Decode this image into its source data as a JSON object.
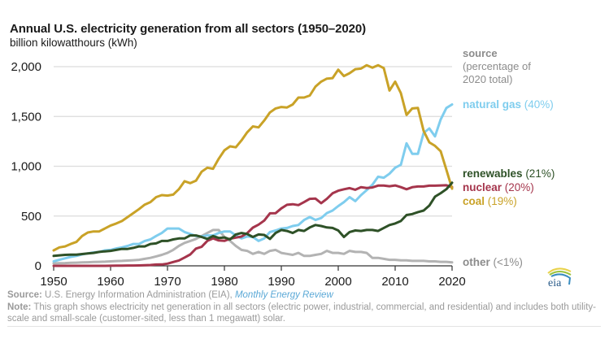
{
  "chart_data": {
    "type": "line",
    "title": "Annual U.S. electricity generation from all sectors (1950–2020)",
    "subtitle": "billion kilowatthours (kWh)",
    "xlabel": "",
    "ylabel": "billion kilowatthours (kWh)",
    "xlim": [
      1950,
      2020
    ],
    "ylim": [
      0,
      2000
    ],
    "grid": true,
    "x_ticks": [
      "1950",
      "1960",
      "1970",
      "1980",
      "1990",
      "2000",
      "2010",
      "2020"
    ],
    "y_ticks": [
      "0",
      "500",
      "1,000",
      "1,500",
      "2,000"
    ],
    "legend_title": [
      "source",
      "(percentage of",
      "2020 total)"
    ],
    "legend_placement": "right",
    "x": [
      1950,
      1951,
      1952,
      1953,
      1954,
      1955,
      1956,
      1957,
      1958,
      1959,
      1960,
      1961,
      1962,
      1963,
      1964,
      1965,
      1966,
      1967,
      1968,
      1969,
      1970,
      1971,
      1972,
      1973,
      1974,
      1975,
      1976,
      1977,
      1978,
      1979,
      1980,
      1981,
      1982,
      1983,
      1984,
      1985,
      1986,
      1987,
      1988,
      1989,
      1990,
      1991,
      1992,
      1993,
      1994,
      1995,
      1996,
      1997,
      1998,
      1999,
      2000,
      2001,
      2002,
      2003,
      2004,
      2005,
      2006,
      2007,
      2008,
      2009,
      2010,
      2011,
      2012,
      2013,
      2014,
      2015,
      2016,
      2017,
      2018,
      2019,
      2020
    ],
    "series": [
      {
        "name": "coal",
        "label": "coal",
        "pct": "(19%)",
        "color": "#c9a227",
        "values": [
          155,
          185,
          195,
          220,
          240,
          300,
          335,
          345,
          345,
          375,
          405,
          425,
          450,
          490,
          530,
          570,
          615,
          640,
          690,
          710,
          705,
          715,
          770,
          850,
          830,
          855,
          945,
          985,
          975,
          1075,
          1160,
          1200,
          1190,
          1260,
          1340,
          1400,
          1390,
          1460,
          1540,
          1580,
          1595,
          1590,
          1620,
          1690,
          1690,
          1710,
          1800,
          1850,
          1880,
          1885,
          1970,
          1905,
          1935,
          1975,
          1980,
          2015,
          1990,
          2015,
          1985,
          1760,
          1850,
          1735,
          1515,
          1580,
          1585,
          1355,
          1240,
          1205,
          1150,
          965,
          775
        ]
      },
      {
        "name": "natural-gas",
        "label": "natural gas",
        "pct": "(40%)",
        "color": "#7fcdee",
        "values": [
          45,
          60,
          75,
          90,
          100,
          115,
          125,
          135,
          140,
          155,
          160,
          175,
          185,
          200,
          220,
          220,
          250,
          265,
          300,
          330,
          375,
          375,
          375,
          340,
          320,
          300,
          295,
          305,
          305,
          330,
          345,
          345,
          305,
          275,
          295,
          290,
          250,
          275,
          340,
          355,
          375,
          380,
          400,
          410,
          460,
          490,
          460,
          480,
          530,
          555,
          600,
          640,
          690,
          650,
          710,
          760,
          815,
          895,
          885,
          925,
          985,
          1015,
          1230,
          1125,
          1125,
          1335,
          1380,
          1300,
          1470,
          1585,
          1620
        ]
      },
      {
        "name": "renewables",
        "label": "renewables",
        "pct": "(21%)",
        "color": "#2e5127",
        "values": [
          100,
          105,
          110,
          112,
          112,
          118,
          125,
          130,
          140,
          145,
          150,
          160,
          170,
          170,
          180,
          195,
          195,
          220,
          225,
          250,
          250,
          265,
          275,
          275,
          305,
          305,
          290,
          270,
          300,
          280,
          285,
          265,
          315,
          330,
          320,
          290,
          315,
          310,
          270,
          330,
          360,
          350,
          330,
          360,
          350,
          385,
          410,
          400,
          385,
          380,
          355,
          290,
          340,
          355,
          350,
          360,
          360,
          350,
          380,
          410,
          425,
          450,
          510,
          520,
          540,
          555,
          605,
          695,
          730,
          770,
          835
        ]
      },
      {
        "name": "nuclear",
        "label": "nuclear",
        "pct": "(20%)",
        "color": "#a5354c",
        "values": [
          0,
          0,
          0,
          0,
          0,
          0,
          0,
          0,
          0,
          0,
          1,
          2,
          2,
          3,
          3,
          4,
          6,
          8,
          13,
          14,
          22,
          38,
          54,
          83,
          114,
          173,
          191,
          251,
          276,
          255,
          251,
          273,
          283,
          294,
          328,
          384,
          414,
          455,
          527,
          529,
          577,
          613,
          619,
          610,
          640,
          673,
          675,
          629,
          673,
          728,
          754,
          769,
          780,
          764,
          789,
          782,
          787,
          806,
          806,
          799,
          807,
          790,
          769,
          789,
          797,
          797,
          805,
          805,
          807,
          809,
          790
        ]
      },
      {
        "name": "other",
        "label": "other",
        "pct": "(<1%)",
        "color": "#b3b3b3",
        "values": [
          25,
          27,
          28,
          30,
          32,
          34,
          36,
          38,
          40,
          42,
          45,
          48,
          50,
          53,
          56,
          60,
          70,
          80,
          95,
          110,
          130,
          160,
          200,
          230,
          250,
          270,
          300,
          330,
          360,
          360,
          290,
          250,
          200,
          160,
          150,
          120,
          140,
          120,
          150,
          160,
          130,
          120,
          110,
          130,
          100,
          100,
          110,
          120,
          150,
          130,
          130,
          120,
          150,
          140,
          140,
          130,
          80,
          80,
          70,
          60,
          60,
          55,
          55,
          50,
          50,
          50,
          45,
          45,
          40,
          40,
          35
        ]
      }
    ]
  },
  "footer": {
    "source_label": "Source:",
    "source_text": " U.S. Energy Information Administration (EIA), ",
    "source_link": "Monthly Energy Review",
    "note_label": "Note:",
    "note_text": " This graph shows electricity net generation in all sectors (electric power, industrial, commercial, and residential) and includes both utility-scale and small-scale (customer-sited, less than 1 megawatt) solar."
  },
  "logo": {
    "text": "eia"
  }
}
